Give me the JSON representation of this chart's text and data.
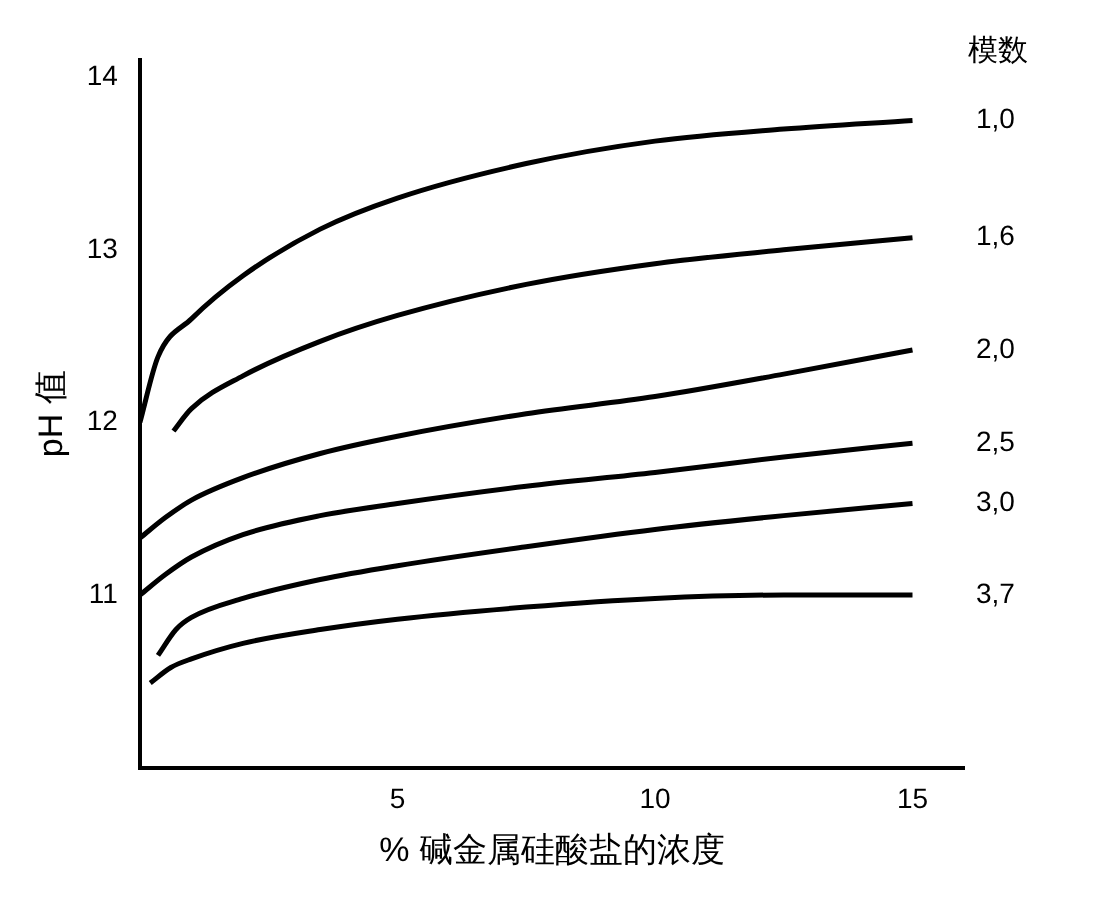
{
  "chart_data": {
    "type": "line",
    "xlabel": "% 碱金属硅酸盐的浓度",
    "ylabel": "pH 值",
    "legend_title": "模数",
    "xlim": [
      0,
      16
    ],
    "ylim": [
      10,
      14.1
    ],
    "xticks": [
      5,
      10,
      15
    ],
    "yticks": [
      11,
      12,
      13,
      14
    ],
    "grid": false,
    "legend": false,
    "marker": "none",
    "line_style": "solid",
    "series": [
      {
        "name": "1,0",
        "color": "#000000",
        "x": [
          0,
          0.35,
          1,
          2,
          3.5,
          5,
          7.5,
          10,
          12.5,
          15
        ],
        "values": [
          12.0,
          12.38,
          12.6,
          12.85,
          13.12,
          13.3,
          13.5,
          13.63,
          13.7,
          13.75
        ]
      },
      {
        "name": "1,6",
        "color": "#000000",
        "x": [
          0.65,
          1,
          2,
          3.5,
          5,
          7.5,
          10,
          12.5,
          15
        ],
        "values": [
          11.95,
          12.08,
          12.27,
          12.47,
          12.62,
          12.8,
          12.92,
          13.0,
          13.07
        ]
      },
      {
        "name": "2,0",
        "color": "#000000",
        "x": [
          0,
          0.5,
          1,
          2,
          3.5,
          5,
          7.5,
          10,
          12.5,
          15
        ],
        "values": [
          11.33,
          11.45,
          11.55,
          11.68,
          11.82,
          11.92,
          12.05,
          12.15,
          12.28,
          12.42
        ]
      },
      {
        "name": "2,5",
        "color": "#000000",
        "x": [
          0,
          0.5,
          1,
          2,
          3.5,
          5,
          7.5,
          10,
          12.5,
          15
        ],
        "values": [
          11.0,
          11.12,
          11.22,
          11.35,
          11.46,
          11.53,
          11.63,
          11.71,
          11.8,
          11.88
        ]
      },
      {
        "name": "3,0",
        "color": "#000000",
        "x": [
          0.35,
          0.7,
          1,
          2,
          3.5,
          5,
          7.5,
          10,
          12.5,
          15
        ],
        "values": [
          10.65,
          10.8,
          10.87,
          10.98,
          11.09,
          11.17,
          11.28,
          11.38,
          11.46,
          11.53
        ]
      },
      {
        "name": "3,7",
        "color": "#000000",
        "x": [
          0.2,
          0.6,
          1,
          2,
          3.5,
          5,
          7.5,
          10,
          12.5,
          15
        ],
        "values": [
          10.49,
          10.58,
          10.63,
          10.72,
          10.8,
          10.86,
          10.93,
          10.98,
          11.0,
          11.0
        ]
      }
    ]
  }
}
